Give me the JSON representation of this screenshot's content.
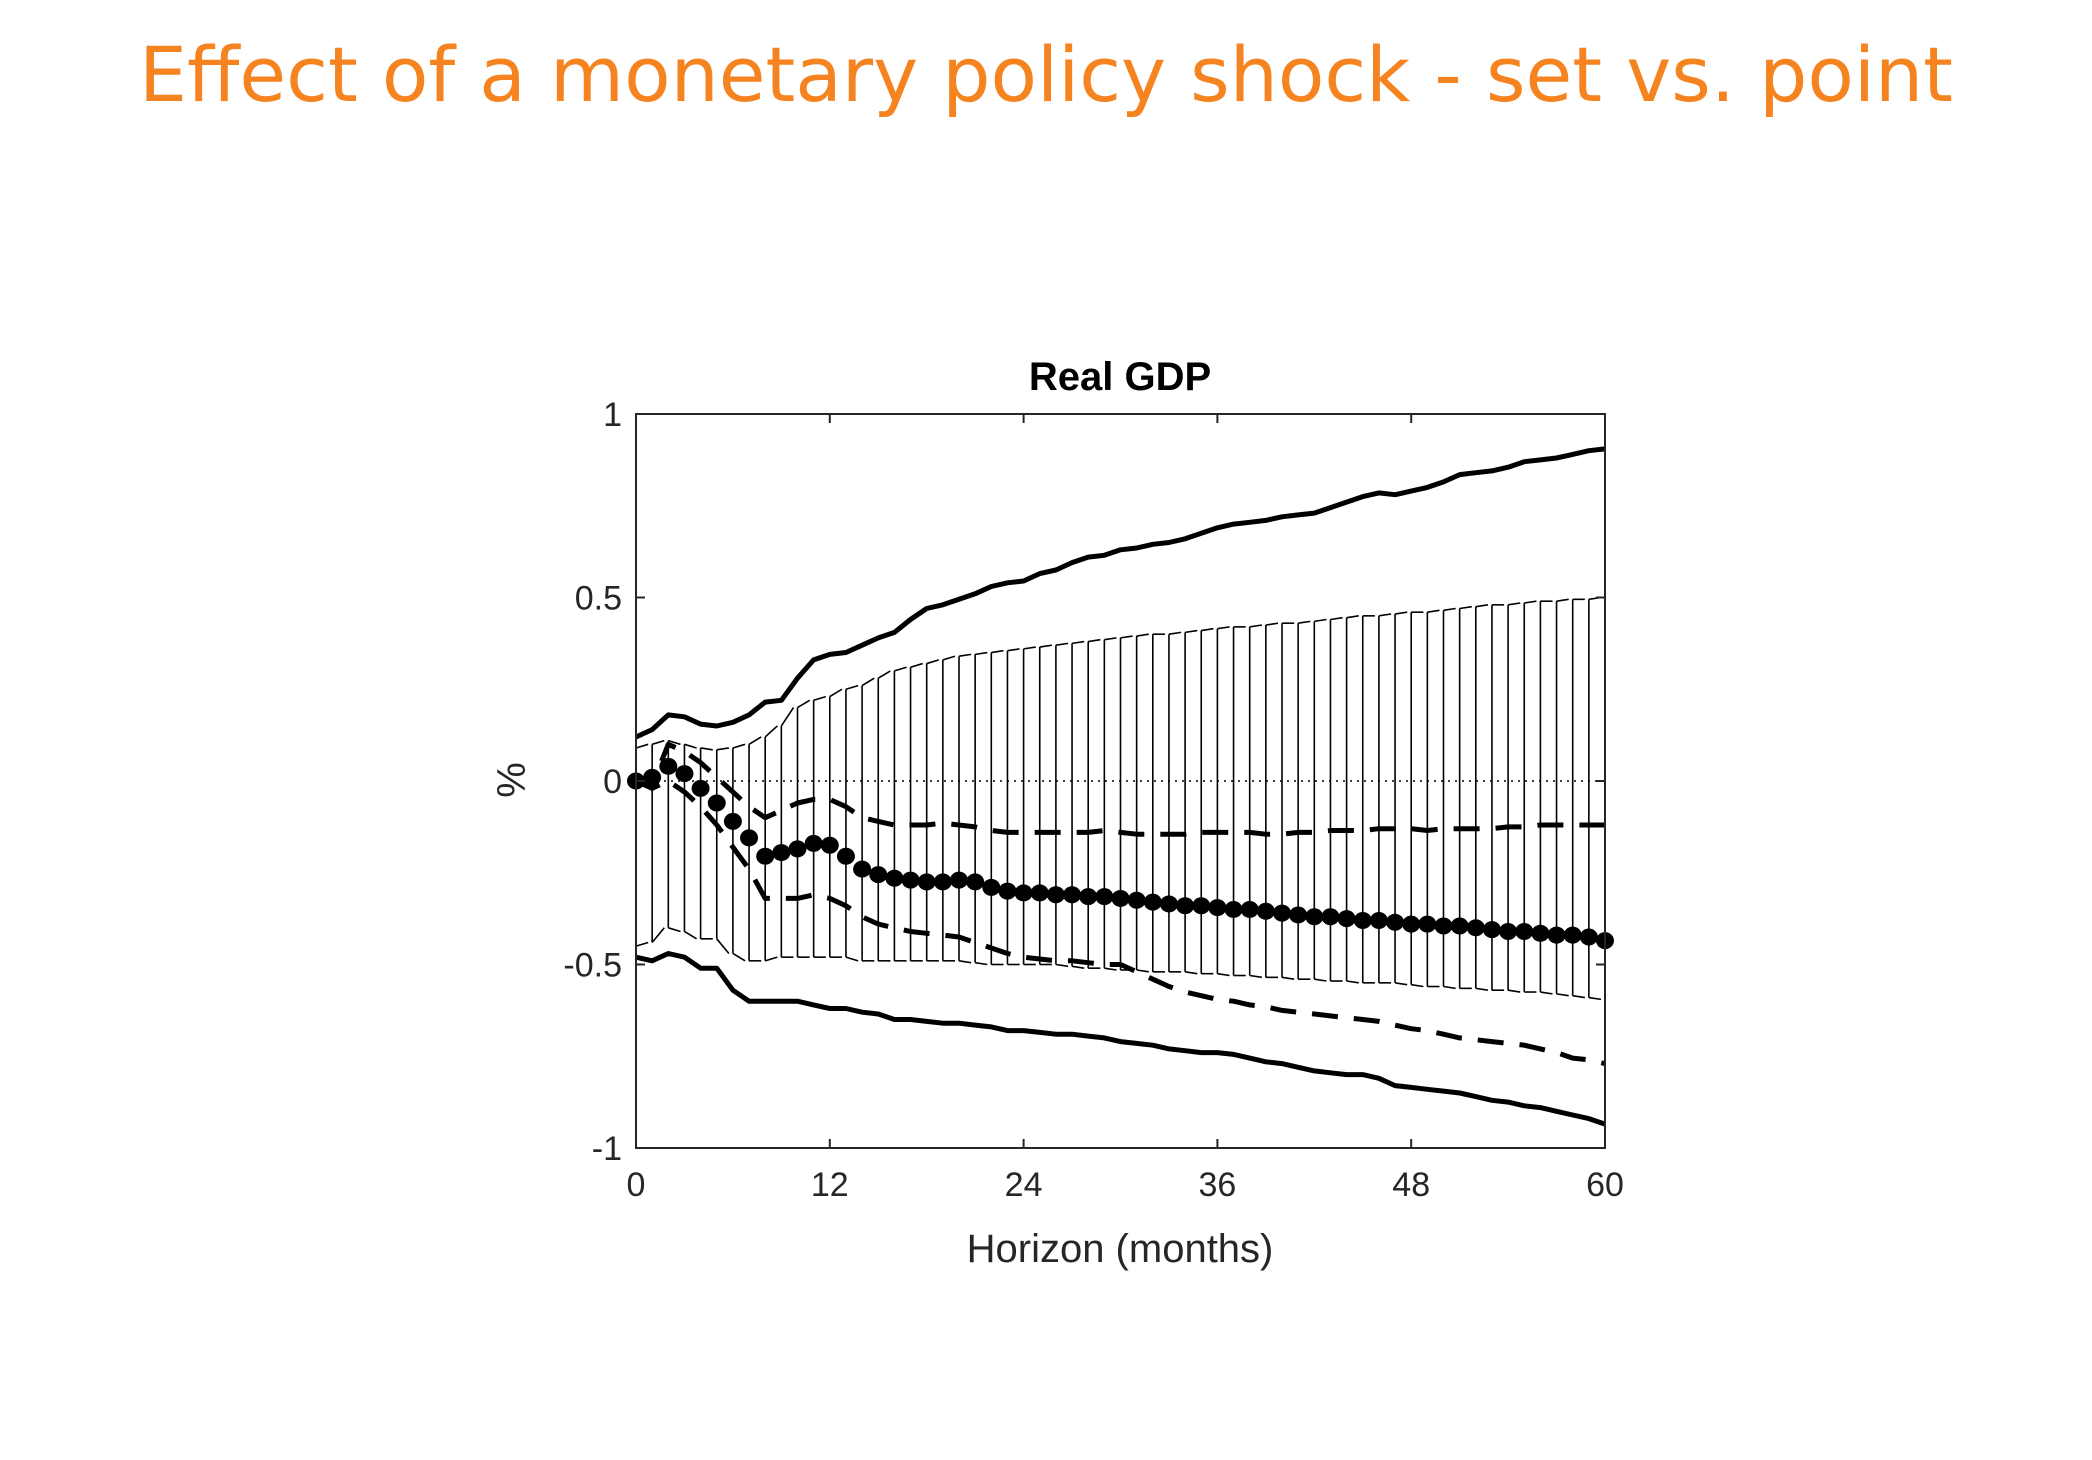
{
  "slide": {
    "title": "Effect of a monetary policy shock - set vs. point",
    "title_color": "#F5831F"
  },
  "chart_data": {
    "type": "line",
    "title": "Real GDP",
    "xlabel": "Horizon (months)",
    "ylabel": "%",
    "xlim": [
      0,
      60
    ],
    "ylim": [
      -1,
      1
    ],
    "xticks": [
      0,
      12,
      24,
      36,
      48,
      60
    ],
    "xtick_labels": [
      "0",
      "12",
      "24",
      "36",
      "48",
      "60"
    ],
    "yticks": [
      1,
      0.5,
      0,
      -0.5,
      -1
    ],
    "ytick_labels": [
      "1",
      "0.5",
      "0",
      "-0.5",
      "-1"
    ],
    "grid": false,
    "zero_line": true,
    "series": [
      {
        "name": "point estimate",
        "style": "dots",
        "values": [
          0,
          0.01,
          0.04,
          0.02,
          -0.02,
          -0.06,
          -0.11,
          -0.155,
          -0.205,
          -0.195,
          -0.185,
          -0.17,
          -0.175,
          -0.205,
          -0.24,
          -0.255,
          -0.265,
          -0.27,
          -0.275,
          -0.275,
          -0.27,
          -0.275,
          -0.29,
          -0.3,
          -0.305,
          -0.305,
          -0.31,
          -0.31,
          -0.315,
          -0.315,
          -0.32,
          -0.325,
          -0.33,
          -0.335,
          -0.34,
          -0.34,
          -0.345,
          -0.35,
          -0.35,
          -0.355,
          -0.36,
          -0.365,
          -0.37,
          -0.37,
          -0.375,
          -0.38,
          -0.38,
          -0.385,
          -0.39,
          -0.39,
          -0.395,
          -0.395,
          -0.4,
          -0.405,
          -0.41,
          -0.41,
          -0.415,
          -0.42,
          -0.42,
          -0.425,
          -0.435
        ]
      },
      {
        "name": "outer band upper",
        "style": "solid",
        "values": [
          0.12,
          0.14,
          0.18,
          0.175,
          0.155,
          0.15,
          0.16,
          0.18,
          0.215,
          0.22,
          0.28,
          0.33,
          0.345,
          0.35,
          0.37,
          0.39,
          0.405,
          0.44,
          0.47,
          0.48,
          0.495,
          0.51,
          0.53,
          0.54,
          0.545,
          0.565,
          0.575,
          0.595,
          0.61,
          0.615,
          0.63,
          0.635,
          0.645,
          0.65,
          0.66,
          0.675,
          0.69,
          0.7,
          0.705,
          0.71,
          0.72,
          0.725,
          0.73,
          0.745,
          0.76,
          0.775,
          0.785,
          0.78,
          0.79,
          0.8,
          0.815,
          0.835,
          0.84,
          0.845,
          0.855,
          0.87,
          0.875,
          0.88,
          0.89,
          0.9,
          0.905
        ]
      },
      {
        "name": "outer band lower",
        "style": "solid",
        "values": [
          -0.48,
          -0.49,
          -0.47,
          -0.48,
          -0.51,
          -0.51,
          -0.57,
          -0.6,
          -0.6,
          -0.6,
          -0.6,
          -0.61,
          -0.62,
          -0.62,
          -0.63,
          -0.635,
          -0.65,
          -0.65,
          -0.655,
          -0.66,
          -0.66,
          -0.665,
          -0.67,
          -0.68,
          -0.68,
          -0.685,
          -0.69,
          -0.69,
          -0.695,
          -0.7,
          -0.71,
          -0.715,
          -0.72,
          -0.73,
          -0.735,
          -0.74,
          -0.74,
          -0.745,
          -0.755,
          -0.765,
          -0.77,
          -0.78,
          -0.79,
          -0.795,
          -0.8,
          -0.8,
          -0.81,
          -0.83,
          -0.835,
          -0.84,
          -0.845,
          -0.85,
          -0.86,
          -0.87,
          -0.875,
          -0.885,
          -0.89,
          -0.9,
          -0.91,
          -0.92,
          -0.935
        ]
      },
      {
        "name": "inner band upper",
        "style": "dashed",
        "values": [
          0,
          -0.01,
          0.1,
          0.08,
          0.05,
          0.01,
          -0.03,
          -0.07,
          -0.1,
          -0.08,
          -0.06,
          -0.05,
          -0.05,
          -0.07,
          -0.1,
          -0.11,
          -0.12,
          -0.12,
          -0.12,
          -0.115,
          -0.12,
          -0.125,
          -0.135,
          -0.14,
          -0.14,
          -0.14,
          -0.14,
          -0.14,
          -0.14,
          -0.135,
          -0.14,
          -0.145,
          -0.145,
          -0.145,
          -0.145,
          -0.14,
          -0.14,
          -0.14,
          -0.14,
          -0.145,
          -0.145,
          -0.14,
          -0.14,
          -0.135,
          -0.135,
          -0.135,
          -0.13,
          -0.13,
          -0.13,
          -0.135,
          -0.13,
          -0.13,
          -0.13,
          -0.13,
          -0.125,
          -0.125,
          -0.12,
          -0.12,
          -0.12,
          -0.12,
          -0.12
        ]
      },
      {
        "name": "inner band lower",
        "style": "dashed",
        "values": [
          0,
          -0.02,
          0,
          -0.03,
          -0.07,
          -0.12,
          -0.18,
          -0.24,
          -0.32,
          -0.32,
          -0.32,
          -0.31,
          -0.32,
          -0.34,
          -0.37,
          -0.39,
          -0.4,
          -0.41,
          -0.415,
          -0.42,
          -0.425,
          -0.44,
          -0.455,
          -0.47,
          -0.48,
          -0.485,
          -0.49,
          -0.49,
          -0.495,
          -0.5,
          -0.5,
          -0.52,
          -0.54,
          -0.56,
          -0.575,
          -0.585,
          -0.595,
          -0.6,
          -0.61,
          -0.615,
          -0.625,
          -0.63,
          -0.635,
          -0.64,
          -0.645,
          -0.65,
          -0.655,
          -0.665,
          -0.675,
          -0.68,
          -0.69,
          -0.7,
          -0.705,
          -0.71,
          -0.715,
          -0.72,
          -0.73,
          -0.74,
          -0.755,
          -0.76,
          -0.77
        ]
      }
    ],
    "identified_set": {
      "name": "identified set",
      "style": "bars",
      "upper": [
        0.09,
        0.1,
        0.11,
        0.1,
        0.09,
        0.085,
        0.09,
        0.1,
        0.12,
        0.15,
        0.2,
        0.22,
        0.23,
        0.25,
        0.26,
        0.28,
        0.3,
        0.31,
        0.32,
        0.33,
        0.34,
        0.345,
        0.35,
        0.355,
        0.36,
        0.365,
        0.37,
        0.375,
        0.38,
        0.385,
        0.39,
        0.395,
        0.4,
        0.4,
        0.405,
        0.41,
        0.415,
        0.42,
        0.42,
        0.425,
        0.43,
        0.43,
        0.435,
        0.44,
        0.445,
        0.45,
        0.45,
        0.455,
        0.46,
        0.46,
        0.465,
        0.47,
        0.475,
        0.48,
        0.48,
        0.485,
        0.49,
        0.49,
        0.495,
        0.495,
        0.5
      ],
      "lower": [
        -0.45,
        -0.44,
        -0.4,
        -0.41,
        -0.43,
        -0.43,
        -0.47,
        -0.49,
        -0.49,
        -0.48,
        -0.48,
        -0.48,
        -0.48,
        -0.48,
        -0.49,
        -0.49,
        -0.49,
        -0.49,
        -0.49,
        -0.49,
        -0.49,
        -0.495,
        -0.5,
        -0.5,
        -0.5,
        -0.5,
        -0.5,
        -0.505,
        -0.51,
        -0.51,
        -0.515,
        -0.515,
        -0.52,
        -0.52,
        -0.52,
        -0.525,
        -0.525,
        -0.53,
        -0.53,
        -0.535,
        -0.535,
        -0.54,
        -0.54,
        -0.545,
        -0.545,
        -0.55,
        -0.55,
        -0.55,
        -0.555,
        -0.56,
        -0.56,
        -0.565,
        -0.565,
        -0.57,
        -0.57,
        -0.575,
        -0.575,
        -0.58,
        -0.585,
        -0.59,
        -0.595
      ]
    }
  }
}
